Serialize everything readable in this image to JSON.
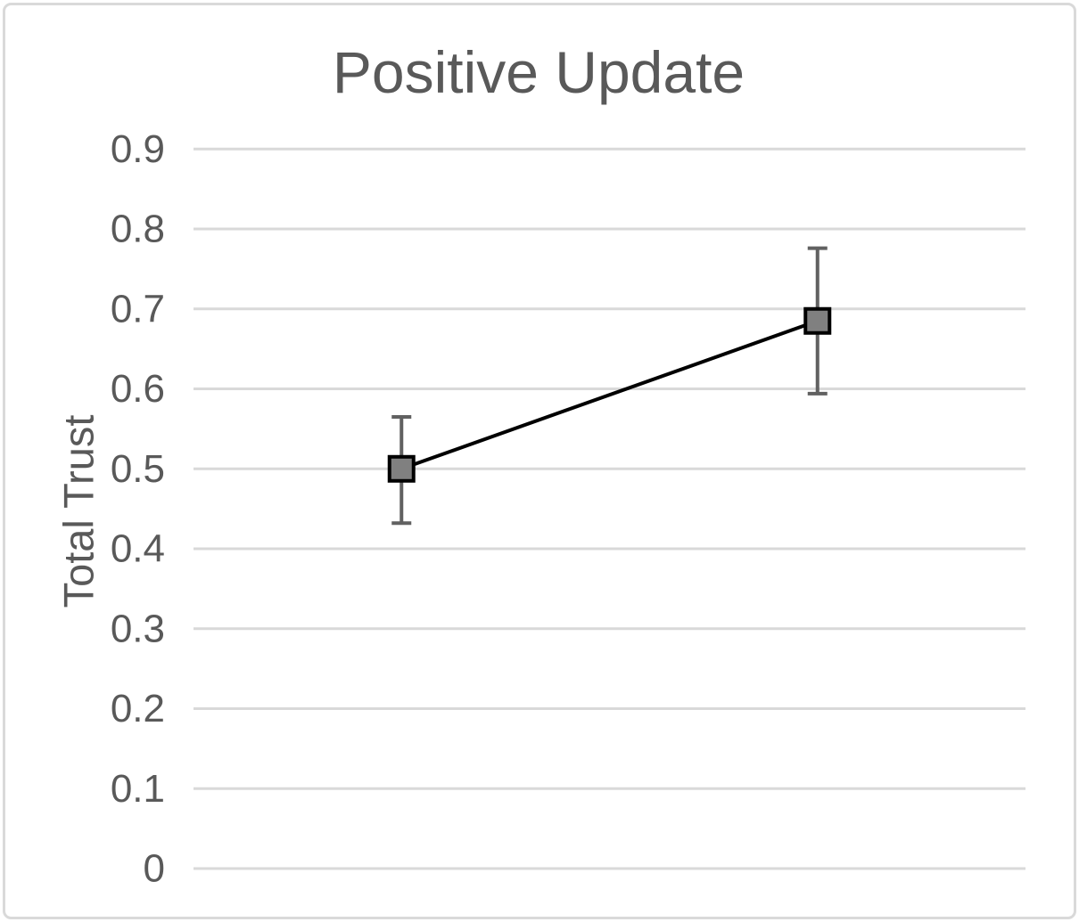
{
  "chart_data": {
    "type": "line",
    "title": "Positive Update",
    "ylabel": "Total Trust",
    "xlabel": "",
    "ylim": [
      0,
      0.9
    ],
    "grid": true,
    "legend": "none",
    "ytick_values": [
      0.9,
      0.8,
      0.7,
      0.6,
      0.5,
      0.4,
      0.3,
      0.2,
      0.1,
      0
    ],
    "ytick_labels": [
      "0.9",
      "0.8",
      "0.7",
      "0.6",
      "0.5",
      "0.4",
      "0.3",
      "0.2",
      "0.1",
      "0"
    ],
    "x_tick_labels": [],
    "series": [
      {
        "values": [
          0.5,
          0.685
        ],
        "error_low": [
          0.432,
          0.594
        ],
        "error_high": [
          0.565,
          0.776
        ]
      }
    ]
  },
  "colors": {
    "background": "#ffffff",
    "frame_border": "#d9d9d9",
    "title_text": "#595959",
    "tick_text": "#595959",
    "axis_title_text": "#595959",
    "gridline": "#d9d9d9",
    "series_line": "#000000",
    "marker_fill": "#808080",
    "marker_border": "#000000",
    "error_bar": "#616161"
  }
}
